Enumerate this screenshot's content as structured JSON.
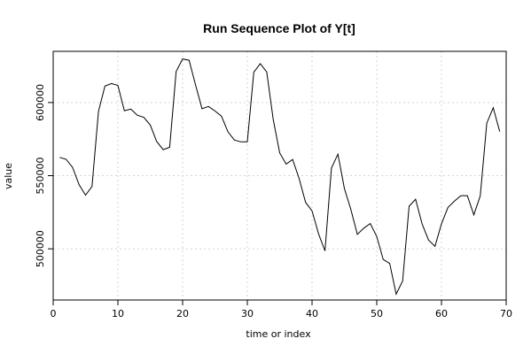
{
  "chart_data": {
    "type": "line",
    "title": "Run Sequence Plot of Y[t]",
    "xlabel": "time or index",
    "ylabel": "value",
    "xlim": [
      0,
      70
    ],
    "ylim": [
      465000,
      635000
    ],
    "x_ticks": [
      0,
      10,
      20,
      30,
      40,
      50,
      60,
      70
    ],
    "y_ticks": [
      500000,
      550000,
      600000
    ],
    "grid": true,
    "series": [
      {
        "x": [
          1,
          2,
          3,
          4,
          5,
          6,
          7,
          8,
          9,
          10,
          11,
          12,
          13,
          14,
          15,
          16,
          17,
          18,
          19,
          20,
          21,
          22,
          23,
          24,
          25,
          26,
          27,
          28,
          29,
          30,
          31,
          32,
          33,
          34,
          35,
          36,
          37,
          38,
          39,
          40,
          41,
          42,
          43,
          44,
          45,
          46,
          47,
          48,
          49,
          50,
          51,
          52,
          53,
          54,
          55,
          56,
          57,
          58,
          59,
          60,
          61,
          62,
          63,
          64,
          65,
          66,
          67,
          68,
          69
        ],
        "values": [
          562500,
          561200,
          555600,
          543800,
          536700,
          542600,
          594000,
          611200,
          613000,
          611700,
          594400,
          595500,
          591300,
          589900,
          584600,
          573300,
          567800,
          569400,
          621200,
          629800,
          628900,
          612000,
          595800,
          597300,
          594200,
          590700,
          580000,
          574400,
          573100,
          573100,
          620700,
          626600,
          620900,
          588500,
          565600,
          557900,
          561100,
          548100,
          531800,
          525900,
          510300,
          498600,
          555200,
          564700,
          541200,
          526900,
          509900,
          514100,
          517300,
          508400,
          492700,
          490000,
          469000,
          478000,
          529100,
          533900,
          517100,
          506000,
          501700,
          517100,
          528300,
          532600,
          536300,
          536300,
          523200,
          536300,
          585900,
          596400,
          580200
        ]
      }
    ]
  }
}
